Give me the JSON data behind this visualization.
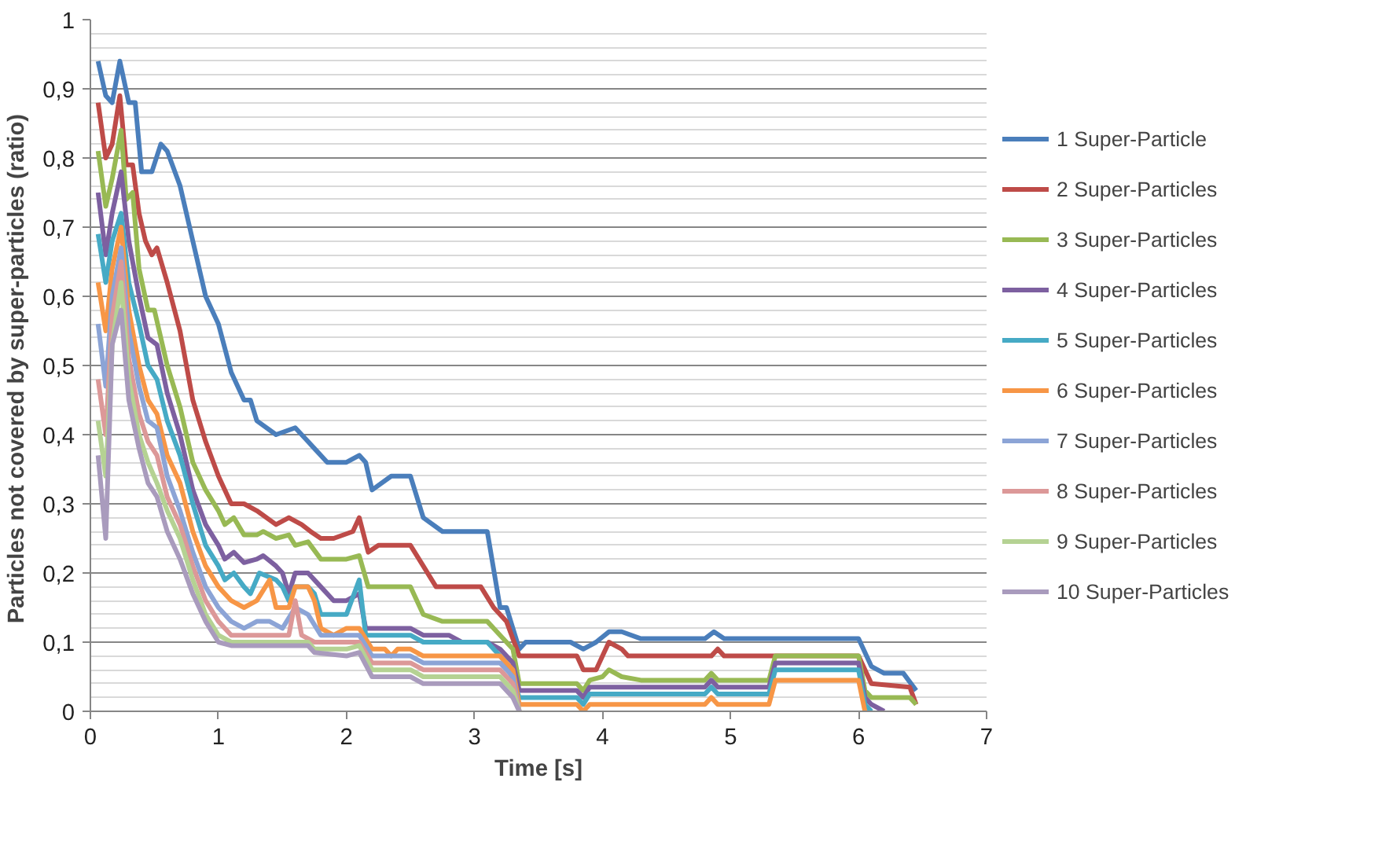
{
  "chart_data": {
    "type": "line",
    "xlabel": "Time [s]",
    "ylabel": "Particles not covered by  super-particles (ratio)",
    "xlim": [
      0,
      7
    ],
    "ylim": [
      0,
      1
    ],
    "xticks": [
      0,
      1,
      2,
      3,
      4,
      5,
      6,
      7
    ],
    "yticks": [
      0,
      {
        "value": 0.1,
        "label": "0,1"
      },
      {
        "value": 0.2,
        "label": "0,2"
      },
      {
        "value": 0.3,
        "label": "0,3"
      },
      {
        "value": 0.4,
        "label": "0,4"
      },
      {
        "value": 0.5,
        "label": "0,5"
      },
      {
        "value": 0.6,
        "label": "0,6"
      },
      {
        "value": 0.7,
        "label": "0,7"
      },
      {
        "value": 0.8,
        "label": "0,8"
      },
      {
        "value": 0.9,
        "label": "0,9"
      },
      1
    ],
    "grid": "y",
    "legend": "right",
    "marker": "none",
    "line_style": "solid",
    "series": [
      {
        "name": "1 Super-Particle",
        "color": "#4a7ebb",
        "x": [
          0.06,
          0.12,
          0.17,
          0.23,
          0.3,
          0.35,
          0.4,
          0.48,
          0.55,
          0.6,
          0.7,
          0.8,
          0.9,
          1.0,
          1.1,
          1.2,
          1.25,
          1.3,
          1.45,
          1.6,
          1.7,
          1.75,
          1.85,
          2.0,
          2.1,
          2.15,
          2.2,
          2.35,
          2.5,
          2.6,
          2.75,
          3.1,
          3.2,
          3.25,
          3.35,
          3.4,
          3.75,
          3.85,
          3.95,
          4.05,
          4.15,
          4.3,
          4.8,
          4.87,
          4.95,
          6.0,
          6.1,
          6.2,
          6.35,
          6.45
        ],
        "values": [
          0.94,
          0.89,
          0.88,
          0.94,
          0.88,
          0.88,
          0.78,
          0.78,
          0.82,
          0.81,
          0.76,
          0.68,
          0.6,
          0.56,
          0.49,
          0.45,
          0.45,
          0.42,
          0.4,
          0.41,
          0.39,
          0.38,
          0.36,
          0.36,
          0.37,
          0.36,
          0.32,
          0.34,
          0.34,
          0.28,
          0.26,
          0.26,
          0.15,
          0.15,
          0.09,
          0.1,
          0.1,
          0.09,
          0.1,
          0.115,
          0.115,
          0.105,
          0.105,
          0.115,
          0.105,
          0.105,
          0.065,
          0.055,
          0.055,
          0.03
        ]
      },
      {
        "name": "2 Super-Particles",
        "color": "#be4b48",
        "x": [
          0.06,
          0.12,
          0.17,
          0.23,
          0.28,
          0.33,
          0.38,
          0.43,
          0.48,
          0.52,
          0.6,
          0.7,
          0.8,
          0.9,
          1.0,
          1.1,
          1.2,
          1.3,
          1.45,
          1.55,
          1.65,
          1.72,
          1.8,
          1.9,
          2.05,
          2.1,
          2.17,
          2.25,
          2.5,
          2.6,
          2.7,
          3.05,
          3.15,
          3.25,
          3.35,
          3.8,
          3.85,
          3.95,
          4.05,
          4.15,
          4.2,
          4.85,
          4.9,
          4.95,
          6.0,
          6.1,
          6.4,
          6.45
        ],
        "values": [
          0.88,
          0.8,
          0.82,
          0.89,
          0.79,
          0.79,
          0.72,
          0.68,
          0.66,
          0.67,
          0.62,
          0.55,
          0.45,
          0.39,
          0.34,
          0.3,
          0.3,
          0.29,
          0.27,
          0.28,
          0.27,
          0.26,
          0.25,
          0.25,
          0.26,
          0.28,
          0.23,
          0.24,
          0.24,
          0.21,
          0.18,
          0.18,
          0.15,
          0.13,
          0.08,
          0.08,
          0.06,
          0.06,
          0.1,
          0.09,
          0.08,
          0.08,
          0.09,
          0.08,
          0.08,
          0.04,
          0.035,
          0.01
        ]
      },
      {
        "name": "3 Super-Particles",
        "color": "#98b954",
        "x": [
          0.06,
          0.12,
          0.17,
          0.24,
          0.28,
          0.33,
          0.38,
          0.45,
          0.5,
          0.6,
          0.7,
          0.8,
          0.9,
          1.0,
          1.05,
          1.12,
          1.2,
          1.3,
          1.35,
          1.45,
          1.55,
          1.6,
          1.7,
          1.8,
          2.0,
          2.1,
          2.17,
          2.5,
          2.6,
          2.75,
          3.1,
          3.2,
          3.3,
          3.35,
          3.8,
          3.85,
          3.9,
          4.0,
          4.05,
          4.15,
          4.3,
          4.8,
          4.85,
          4.9,
          5.3,
          5.35,
          6.0,
          6.05,
          6.1,
          6.4,
          6.45
        ],
        "values": [
          0.81,
          0.73,
          0.77,
          0.84,
          0.74,
          0.75,
          0.64,
          0.58,
          0.58,
          0.5,
          0.44,
          0.36,
          0.32,
          0.29,
          0.27,
          0.28,
          0.255,
          0.255,
          0.26,
          0.25,
          0.255,
          0.24,
          0.245,
          0.22,
          0.22,
          0.225,
          0.18,
          0.18,
          0.14,
          0.13,
          0.13,
          0.11,
          0.09,
          0.04,
          0.04,
          0.03,
          0.045,
          0.05,
          0.06,
          0.05,
          0.045,
          0.045,
          0.055,
          0.045,
          0.045,
          0.08,
          0.08,
          0.03,
          0.02,
          0.02,
          0.01
        ]
      },
      {
        "name": "4 Super-Particles",
        "color": "#7d60a0",
        "x": [
          0.06,
          0.12,
          0.17,
          0.24,
          0.3,
          0.38,
          0.45,
          0.52,
          0.6,
          0.7,
          0.8,
          0.9,
          1.0,
          1.05,
          1.12,
          1.2,
          1.3,
          1.35,
          1.45,
          1.5,
          1.55,
          1.6,
          1.7,
          1.8,
          1.9,
          2.0,
          2.1,
          2.15,
          2.5,
          2.6,
          2.8,
          2.9,
          3.1,
          3.2,
          3.3,
          3.35,
          3.8,
          3.85,
          3.9,
          4.8,
          4.85,
          4.9,
          5.3,
          5.35,
          6.0,
          6.05,
          6.1,
          6.2
        ],
        "values": [
          0.75,
          0.66,
          0.72,
          0.78,
          0.68,
          0.6,
          0.54,
          0.53,
          0.46,
          0.4,
          0.32,
          0.27,
          0.24,
          0.22,
          0.23,
          0.215,
          0.22,
          0.225,
          0.21,
          0.2,
          0.17,
          0.2,
          0.2,
          0.18,
          0.16,
          0.16,
          0.17,
          0.12,
          0.12,
          0.11,
          0.11,
          0.1,
          0.1,
          0.09,
          0.07,
          0.03,
          0.03,
          0.02,
          0.035,
          0.035,
          0.045,
          0.035,
          0.035,
          0.07,
          0.07,
          0.02,
          0.01,
          0
        ]
      },
      {
        "name": "5 Super-Particles",
        "color": "#46aac5",
        "x": [
          0.06,
          0.12,
          0.17,
          0.24,
          0.3,
          0.38,
          0.45,
          0.52,
          0.6,
          0.7,
          0.8,
          0.9,
          1.0,
          1.05,
          1.12,
          1.2,
          1.25,
          1.32,
          1.45,
          1.5,
          1.55,
          1.6,
          1.7,
          1.75,
          1.8,
          2.0,
          2.1,
          2.15,
          2.5,
          2.6,
          3.1,
          3.25,
          3.35,
          3.8,
          3.85,
          3.9,
          4.8,
          4.85,
          4.9,
          5.3,
          5.35,
          6.0,
          6.05,
          6.1
        ],
        "values": [
          0.69,
          0.62,
          0.68,
          0.72,
          0.62,
          0.56,
          0.5,
          0.48,
          0.42,
          0.37,
          0.3,
          0.24,
          0.21,
          0.19,
          0.2,
          0.18,
          0.17,
          0.2,
          0.19,
          0.18,
          0.16,
          0.18,
          0.18,
          0.17,
          0.14,
          0.14,
          0.19,
          0.11,
          0.11,
          0.1,
          0.1,
          0.07,
          0.02,
          0.02,
          0.01,
          0.025,
          0.025,
          0.035,
          0.025,
          0.025,
          0.06,
          0.06,
          0.01,
          0
        ]
      },
      {
        "name": "6 Super-Particles",
        "color": "#f79646",
        "x": [
          0.06,
          0.12,
          0.17,
          0.24,
          0.3,
          0.38,
          0.45,
          0.52,
          0.6,
          0.7,
          0.8,
          0.9,
          1.0,
          1.1,
          1.2,
          1.3,
          1.4,
          1.45,
          1.55,
          1.6,
          1.7,
          1.75,
          1.8,
          1.9,
          2.0,
          2.1,
          2.2,
          2.3,
          2.35,
          2.4,
          2.5,
          2.6,
          3.2,
          3.3,
          3.35,
          3.8,
          3.85,
          3.9,
          4.8,
          4.85,
          4.9,
          5.3,
          5.35,
          6.0,
          6.05
        ],
        "values": [
          0.62,
          0.55,
          0.64,
          0.7,
          0.58,
          0.5,
          0.45,
          0.43,
          0.37,
          0.33,
          0.26,
          0.21,
          0.18,
          0.16,
          0.15,
          0.16,
          0.19,
          0.15,
          0.15,
          0.18,
          0.18,
          0.16,
          0.12,
          0.11,
          0.12,
          0.12,
          0.09,
          0.09,
          0.08,
          0.09,
          0.09,
          0.08,
          0.08,
          0.06,
          0.01,
          0.01,
          0,
          0.01,
          0.01,
          0.02,
          0.01,
          0.01,
          0.045,
          0.045,
          0
        ]
      },
      {
        "name": "7 Super-Particles",
        "color": "#8ca4d6",
        "x": [
          0.06,
          0.12,
          0.17,
          0.24,
          0.3,
          0.38,
          0.45,
          0.52,
          0.6,
          0.7,
          0.8,
          0.9,
          1.0,
          1.1,
          1.2,
          1.3,
          1.4,
          1.5,
          1.6,
          1.7,
          1.8,
          2.0,
          2.1,
          2.2,
          2.5,
          2.6,
          3.2,
          3.3,
          3.35
        ],
        "values": [
          0.56,
          0.47,
          0.6,
          0.67,
          0.55,
          0.47,
          0.42,
          0.41,
          0.34,
          0.29,
          0.23,
          0.18,
          0.15,
          0.13,
          0.12,
          0.13,
          0.13,
          0.12,
          0.15,
          0.14,
          0.11,
          0.11,
          0.11,
          0.08,
          0.08,
          0.07,
          0.07,
          0.05,
          0
        ]
      },
      {
        "name": "8 Super-Particles",
        "color": "#dc9898",
        "x": [
          0.06,
          0.12,
          0.17,
          0.24,
          0.3,
          0.38,
          0.45,
          0.52,
          0.6,
          0.7,
          0.8,
          0.9,
          1.0,
          1.1,
          1.55,
          1.6,
          1.65,
          1.75,
          2.0,
          2.1,
          2.2,
          2.5,
          2.6,
          3.2,
          3.3,
          3.35
        ],
        "values": [
          0.48,
          0.4,
          0.57,
          0.65,
          0.51,
          0.43,
          0.39,
          0.37,
          0.31,
          0.27,
          0.21,
          0.16,
          0.13,
          0.11,
          0.11,
          0.16,
          0.11,
          0.1,
          0.1,
          0.1,
          0.07,
          0.07,
          0.06,
          0.06,
          0.04,
          0
        ]
      },
      {
        "name": "9 Super-Particles",
        "color": "#b5d293",
        "x": [
          0.06,
          0.12,
          0.17,
          0.24,
          0.3,
          0.38,
          0.45,
          0.52,
          0.6,
          0.7,
          0.8,
          0.9,
          1.0,
          1.1,
          1.7,
          1.75,
          2.0,
          2.1,
          2.2,
          2.5,
          2.6,
          3.2,
          3.3,
          3.35
        ],
        "values": [
          0.42,
          0.34,
          0.53,
          0.62,
          0.48,
          0.4,
          0.36,
          0.33,
          0.29,
          0.25,
          0.19,
          0.14,
          0.11,
          0.1,
          0.1,
          0.09,
          0.09,
          0.095,
          0.06,
          0.06,
          0.05,
          0.05,
          0.03,
          0
        ]
      },
      {
        "name": "10 Super-Particles",
        "color": "#a99bbd",
        "x": [
          0.06,
          0.12,
          0.17,
          0.24,
          0.3,
          0.38,
          0.45,
          0.52,
          0.6,
          0.7,
          0.8,
          0.9,
          1.0,
          1.1,
          1.7,
          1.75,
          2.0,
          2.1,
          2.2,
          2.5,
          2.6,
          3.2,
          3.3,
          3.35
        ],
        "values": [
          0.37,
          0.25,
          0.53,
          0.58,
          0.45,
          0.38,
          0.33,
          0.31,
          0.26,
          0.22,
          0.17,
          0.13,
          0.1,
          0.095,
          0.095,
          0.085,
          0.08,
          0.085,
          0.05,
          0.05,
          0.04,
          0.04,
          0.02,
          0
        ]
      }
    ]
  }
}
